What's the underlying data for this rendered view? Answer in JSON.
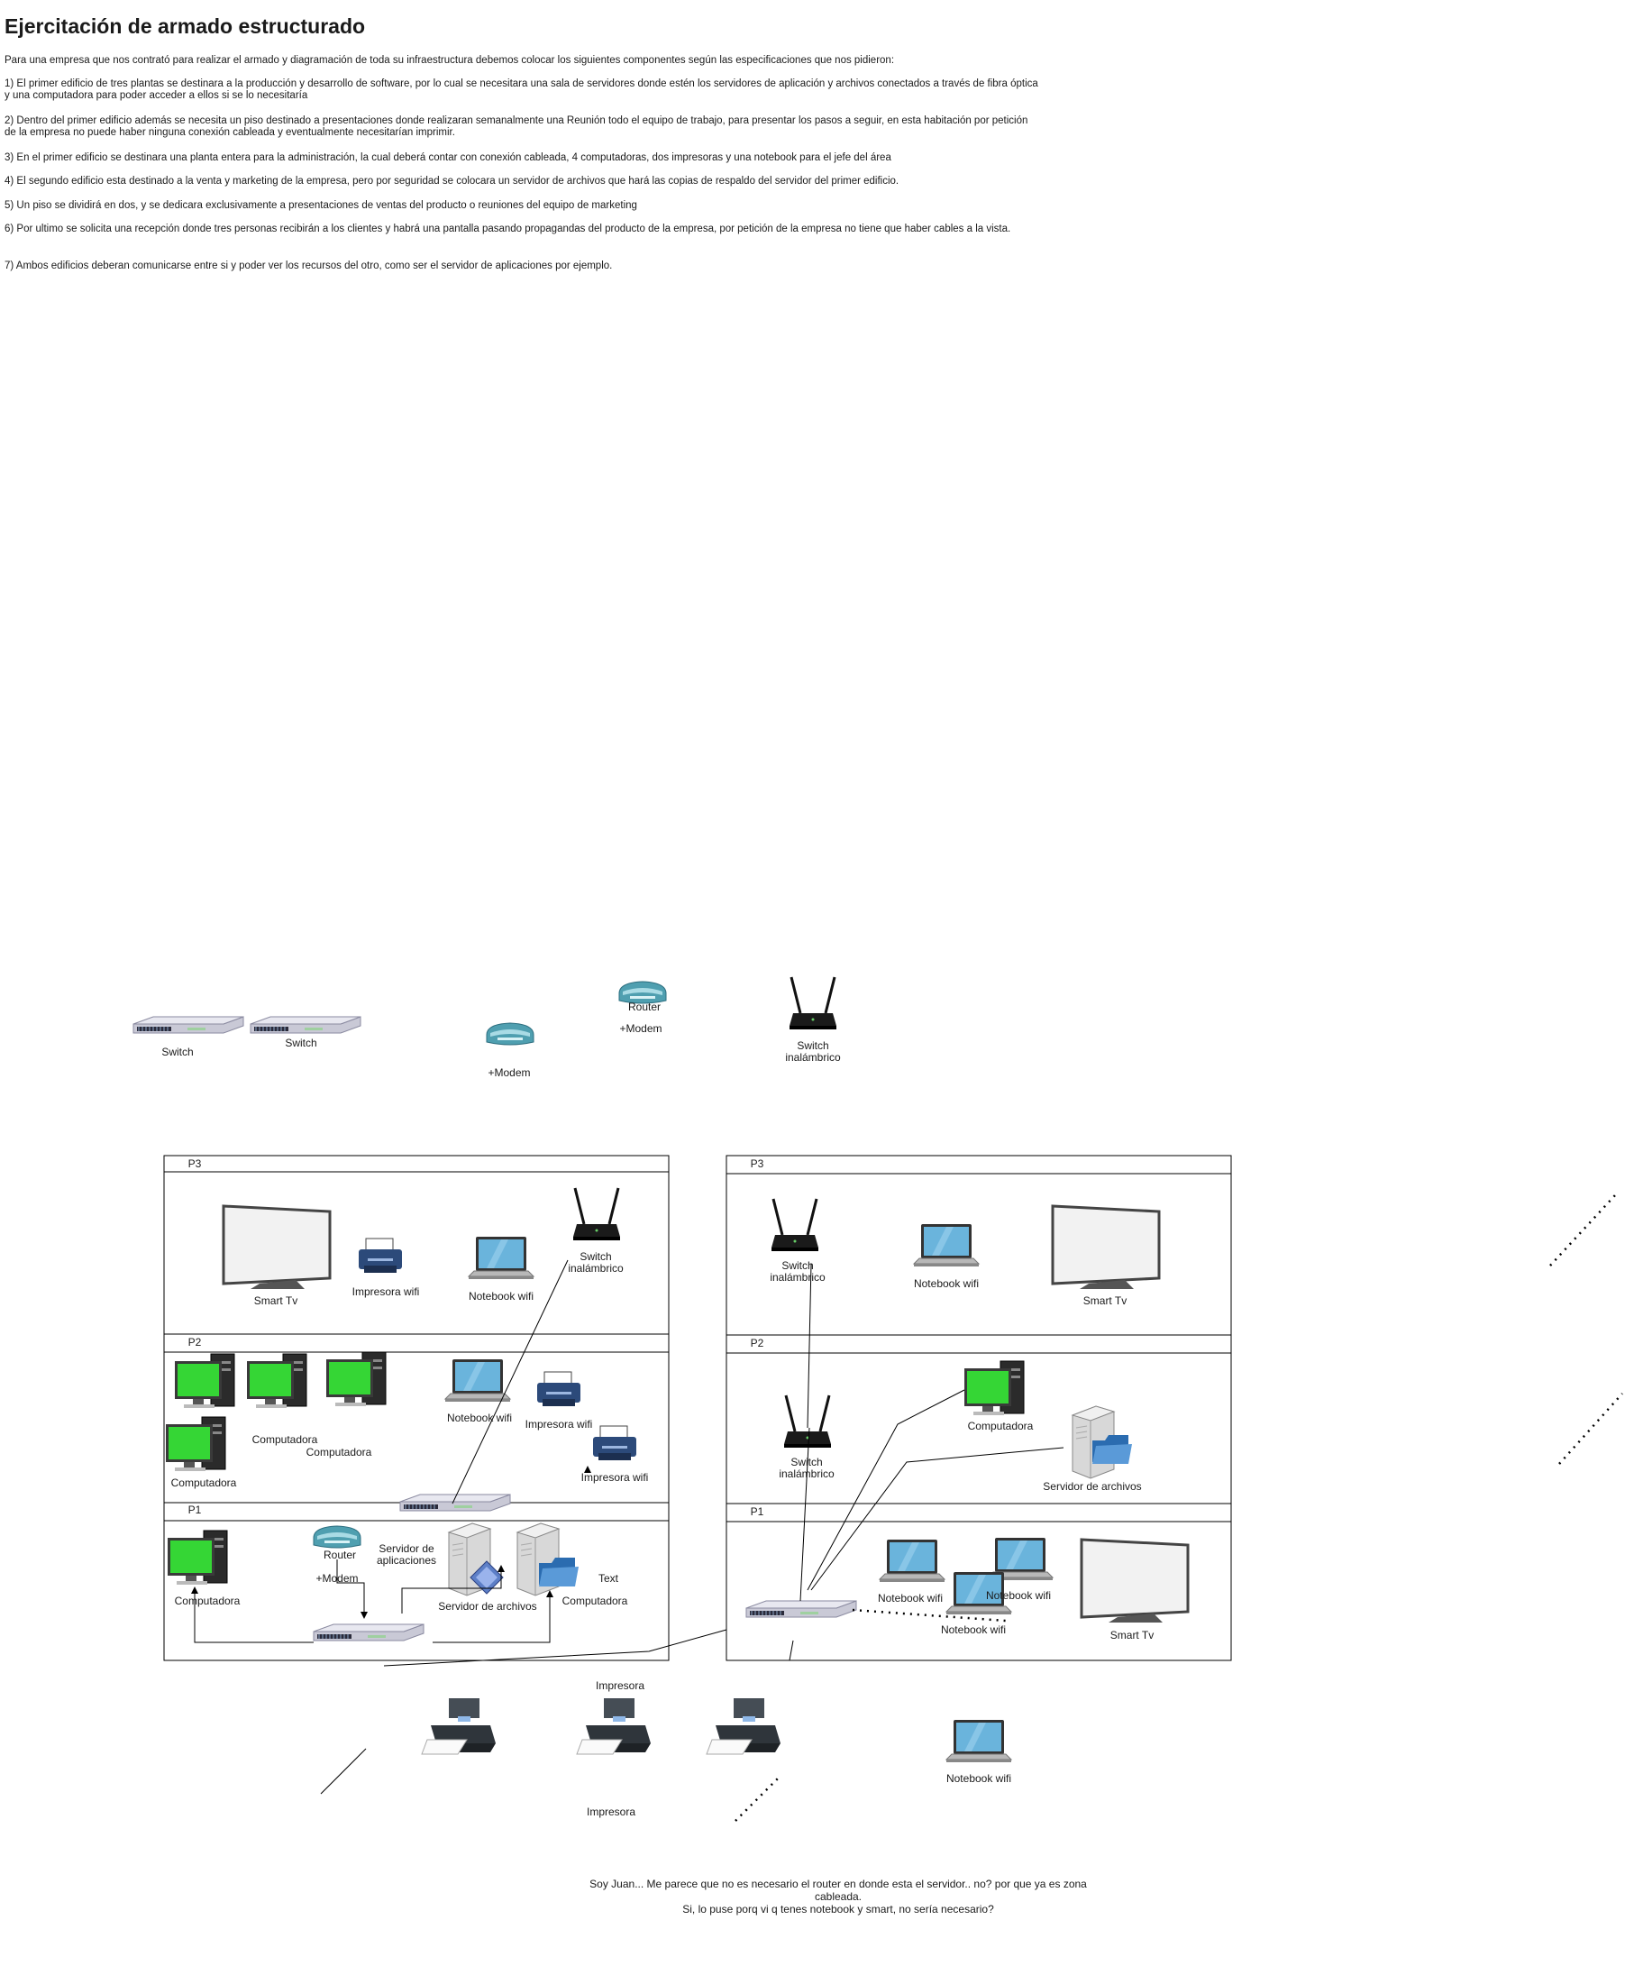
{
  "document": {
    "title": "Ejercitación de armado estructurado",
    "paragraphs": [
      "Para una empresa que  nos contrató para realizar el armado y diagramación de toda su infraestructura debemos colocar los siguientes componentes según las especificaciones que nos pidieron:",
      "1) El primer edificio de tres plantas se destinara a la producción y desarrollo de software, por lo cual se necesitara una sala de servidores donde estén los servidores de aplicación y archivos conectados a través de fibra óptica y una computadora para poder acceder a ellos si se lo necesitaría",
      "2) Dentro del primer edificio además se necesita un piso destinado a presentaciones donde realizaran semanalmente una Reunión todo el equipo de trabajo, para presentar los pasos a seguir, en esta habitación por petición de la empresa no puede haber ninguna conexión cableada y eventualmente necesitarían imprimir.",
      "3) En el primer edificio se destinara una planta entera para la administración, la cual deberá contar con conexión cableada, 4 computadoras, dos impresoras y una notebook para el jefe del área",
      "4) El segundo edificio esta destinado a la venta y marketing de la empresa, pero por seguridad se colocara un servidor de archivos que hará las copias de respaldo del servidor del primer edificio.",
      "5) Un piso se dividirá en dos, y se dedicara exclusivamente a presentaciones de ventas del producto o reuniones del equipo de marketing",
      "6) Por ultimo se solicita una recepción donde tres personas recibirán a los clientes y habrá una pantalla pasando propagandas del producto de la empresa, por petición de la empresa no tiene que haber cables a la vista.",
      "7) Ambos edificios deberan comunicarse entre si y poder ver los recursos del otro, como ser el servidor de aplicaciones por ejemplo."
    ]
  },
  "palette": {
    "floor_label": "P3",
    "floor_label_p2": "P2",
    "floor_label_p1": "P1"
  },
  "diagram": {
    "loose": {
      "switch_1": "Switch",
      "switch_2": "Switch",
      "modem_1": "+Modem",
      "router_1": "Router",
      "modem_2": "+Modem",
      "wireless_switch": "Switch inalámbrico"
    },
    "building1": {
      "p3": {
        "label": "P3",
        "smart_tv": "Smart Tv",
        "printer": "Impresora wifi",
        "notebook": "Notebook wifi",
        "wireless_switch": "Switch inalámbrico"
      },
      "p2": {
        "label": "P2",
        "computer_a": "Computadora",
        "computer_b": "Computadora",
        "computer_c": "Computadora",
        "notebook": "Notebook wifi",
        "printer_a": "Impresora wifi",
        "printer_b": "Impresora wifi"
      },
      "p1": {
        "label": "P1",
        "computer_a": "Computadora",
        "router": "Router",
        "modem": "+Modem",
        "app_server": "Servidor de aplicaciones",
        "file_server": "Servidor de archivos",
        "computer_b": "Computadora",
        "text": "Text"
      }
    },
    "building2": {
      "p3": {
        "label": "P3",
        "wireless_switch": "Switch inalámbrico",
        "notebook": "Notebook wifi",
        "smart_tv": "Smart Tv"
      },
      "p2": {
        "label": "P2",
        "wireless_switch": "Switch inalámbrico",
        "computer": "Computadora",
        "file_server": "Servidor de archivos"
      },
      "p1": {
        "label": "P1",
        "notebook_a": "Notebook wifi",
        "notebook_b": "Notebook wifi",
        "notebook_c": "Notebook wifi",
        "smart_tv": "Smart Tv"
      }
    },
    "outside": {
      "printer_top": "Impresora",
      "printer_bottom": "Impresora",
      "notebook": "Notebook wifi"
    },
    "comment": {
      "line1": "Soy Juan... Me parece que no es necesario el router en donde esta el servidor.. no? por que ya es zona cableada.",
      "line2": "Si, lo puse porq vi q tenes notebook y smart, no sería necesario?"
    }
  }
}
